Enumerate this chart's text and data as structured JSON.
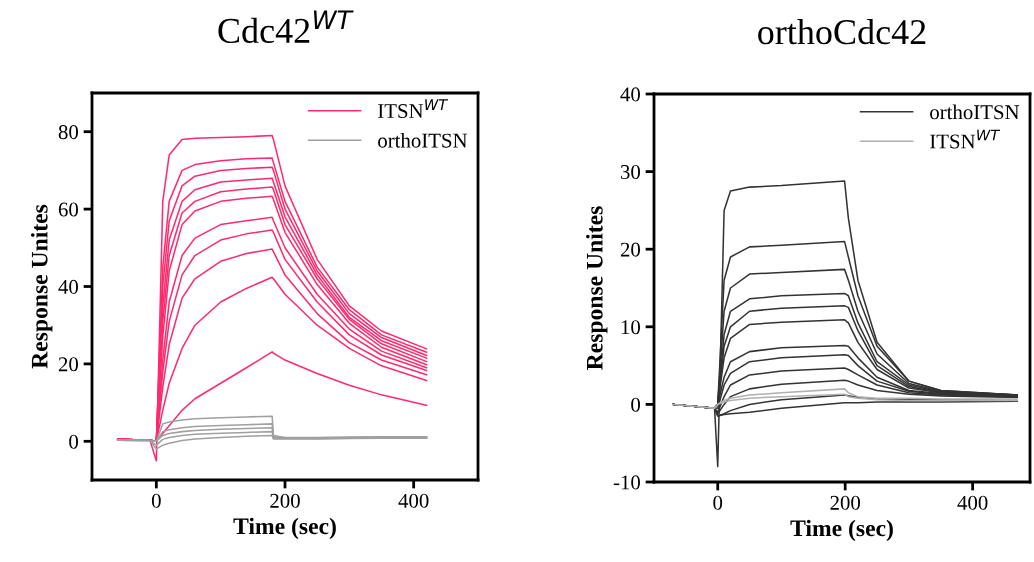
{
  "chart_data": [
    {
      "type": "line",
      "title": "Cdc42$^{WT}$",
      "xlabel": "Time (sec)",
      "ylabel": "Response Unites",
      "xlim": [
        -100,
        500
      ],
      "ylim": [
        -10,
        90
      ],
      "xticks": [
        0,
        200,
        400
      ],
      "yticks": [
        0,
        20,
        40,
        60,
        80
      ],
      "legend": "top right",
      "x": [
        -60,
        -10,
        0,
        10,
        20,
        40,
        60,
        100,
        140,
        180,
        182,
        200,
        250,
        300,
        350,
        420
      ],
      "series": [
        {
          "name": "ITSN$^{WT}$",
          "color": "#ff2a6d",
          "values": [
            0.5,
            0.3,
            -5,
            62,
            74,
            78,
            78.3,
            78.5,
            78.7,
            79,
            78,
            66,
            47,
            35,
            28.5,
            23.9
          ]
        },
        {
          "color": "#ff2a6d",
          "values": [
            0.5,
            0.3,
            0,
            45,
            62,
            70,
            71.5,
            72.5,
            73,
            73.2,
            72,
            62,
            45,
            34,
            27.5,
            23
          ]
        },
        {
          "color": "#ff2a6d",
          "values": [
            0.5,
            0.3,
            0,
            40,
            57,
            66,
            68.5,
            70,
            70.5,
            70.8,
            70,
            60,
            44,
            33,
            26.8,
            22.2
          ]
        },
        {
          "color": "#ff2a6d",
          "values": [
            0.5,
            0.3,
            0,
            35,
            52,
            62,
            65,
            67,
            67.5,
            68,
            67,
            58,
            43,
            32,
            26,
            21.5
          ]
        },
        {
          "color": "#ff2a6d",
          "values": [
            0.5,
            0.3,
            0,
            31,
            48,
            59,
            62,
            64.5,
            65.2,
            65.7,
            65,
            56,
            42,
            31.5,
            25.2,
            20.6
          ]
        },
        {
          "color": "#ff2a6d",
          "values": [
            0.5,
            0.3,
            0,
            27,
            44,
            56,
            59.5,
            62,
            62.8,
            63.3,
            62.5,
            54,
            40.5,
            30.5,
            24.3,
            19.8
          ]
        },
        {
          "color": "#ff2a6d",
          "values": [
            0.5,
            0.3,
            0,
            21,
            36,
            48,
            52.5,
            56,
            57,
            57.9,
            57,
            50,
            38,
            29,
            23.3,
            19
          ]
        },
        {
          "color": "#ff2a6d",
          "values": [
            0.5,
            0.3,
            0,
            18,
            31,
            43,
            48,
            52,
            53.6,
            54.6,
            54,
            47,
            36,
            27.5,
            22.3,
            18.3
          ]
        },
        {
          "color": "#ff2a6d",
          "values": [
            0.5,
            0.3,
            0,
            14,
            25,
            37,
            42,
            46.5,
            48.5,
            49.7,
            49,
            43,
            33,
            25.5,
            21,
            17.2
          ]
        },
        {
          "color": "#ff2a6d",
          "values": [
            0.5,
            0.3,
            0,
            8,
            15,
            24,
            30,
            36,
            39.5,
            42.4,
            42,
            38,
            30,
            24,
            19.5,
            15.7
          ]
        },
        {
          "color": "#ff2a6d",
          "values": [
            0.5,
            0.3,
            0,
            2,
            4,
            8,
            11,
            15,
            19,
            23.1,
            22.8,
            21,
            17.5,
            14.5,
            12,
            9.3
          ]
        },
        {
          "name": "orthoITSN",
          "color": "#a0a0a0",
          "values": [
            0.3,
            0.2,
            0,
            4.5,
            5,
            5.5,
            5.8,
            6.1,
            6.3,
            6.5,
            1.5,
            1,
            1,
            1.1,
            1.2,
            1.2
          ]
        },
        {
          "color": "#a0a0a0",
          "values": [
            0.3,
            0.2,
            0,
            2.5,
            3,
            3.5,
            3.8,
            4.1,
            4.3,
            4.5,
            1.2,
            0.9,
            0.9,
            1,
            1.1,
            1.1
          ]
        },
        {
          "color": "#a0a0a0",
          "values": [
            0.3,
            0.2,
            0,
            1.5,
            2,
            2.5,
            2.8,
            3.1,
            3.3,
            3.5,
            1,
            0.8,
            0.8,
            0.9,
            1,
            1
          ]
        },
        {
          "color": "#a0a0a0",
          "values": [
            0.3,
            0.2,
            -1,
            0.5,
            1,
            1.5,
            1.8,
            2.1,
            2.3,
            2.5,
            0.8,
            0.7,
            0.7,
            0.8,
            0.9,
            0.9
          ]
        },
        {
          "color": "#a0a0a0",
          "values": [
            0.3,
            0.2,
            -2,
            -1,
            -0.5,
            0.2,
            0.6,
            1,
            1.3,
            1.5,
            0.6,
            0.6,
            0.6,
            0.7,
            0.8,
            0.8
          ]
        }
      ]
    },
    {
      "type": "line",
      "title": "orthoCdc42",
      "xlabel": "Time (sec)",
      "ylabel": "Response Unites",
      "xlim": [
        -100,
        490
      ],
      "ylim": [
        -10,
        40
      ],
      "xticks": [
        0,
        200,
        400
      ],
      "yticks": [
        -10,
        0,
        10,
        20,
        30,
        40
      ],
      "legend": "top right",
      "x": [
        -70,
        -5,
        0,
        10,
        20,
        50,
        100,
        199,
        205,
        220,
        250,
        300,
        350,
        470
      ],
      "series": [
        {
          "name": "orthoITSN",
          "color": "#333333",
          "values": [
            0,
            -0.5,
            -8,
            25,
            27.5,
            28,
            28.2,
            28.8,
            24,
            16,
            8,
            3,
            1.8,
            1.2
          ]
        },
        {
          "color": "#333333",
          "values": [
            0,
            -0.5,
            0,
            16,
            19,
            20.3,
            20.5,
            21,
            19,
            14,
            7.5,
            3,
            1.8,
            1.2
          ]
        },
        {
          "color": "#333333",
          "values": [
            0,
            -0.5,
            0,
            12,
            15,
            16.8,
            17,
            17.4,
            16,
            12,
            6.5,
            2.7,
            1.7,
            1.2
          ]
        },
        {
          "color": "#333333",
          "values": [
            0,
            -0.5,
            0,
            9,
            12,
            13.6,
            14,
            14.3,
            14,
            10.5,
            5.5,
            2.5,
            1.6,
            1.2
          ]
        },
        {
          "color": "#333333",
          "values": [
            0,
            -0.5,
            0,
            7.5,
            10,
            12,
            12.4,
            12.7,
            12.5,
            9.5,
            5,
            2.3,
            1.5,
            1.1
          ]
        },
        {
          "color": "#333333",
          "values": [
            0,
            -0.5,
            0,
            6,
            8.5,
            10.3,
            10.6,
            10.9,
            10.5,
            8,
            4.5,
            2.1,
            1.5,
            1.1
          ]
        },
        {
          "color": "#333333",
          "values": [
            0,
            -0.5,
            0,
            3.5,
            5.5,
            6.8,
            7.3,
            7.6,
            7.5,
            6,
            3.5,
            1.8,
            1.4,
            1.1
          ]
        },
        {
          "color": "#333333",
          "values": [
            0,
            -0.5,
            -0.5,
            2.5,
            4,
            5.5,
            6,
            6.4,
            6.3,
            5,
            3,
            1.7,
            1.3,
            1
          ]
        },
        {
          "color": "#333333",
          "values": [
            0,
            -0.5,
            -1,
            1,
            2.5,
            3.8,
            4.3,
            4.7,
            4.5,
            3.8,
            2.5,
            1.5,
            1.2,
            1
          ]
        },
        {
          "color": "#333333",
          "values": [
            0,
            -0.5,
            -1.2,
            0,
            1,
            2,
            2.6,
            3.1,
            3,
            2.5,
            1.8,
            1.3,
            1.1,
            0.9
          ]
        },
        {
          "color": "#333333",
          "values": [
            0,
            -0.5,
            -1.5,
            -1.2,
            -0.8,
            0,
            0.6,
            1.2,
            1.1,
            0.9,
            0.7,
            0.6,
            0.6,
            0.5
          ]
        },
        {
          "color": "#333333",
          "values": [
            0,
            -0.5,
            -1.5,
            -1.3,
            -1.2,
            -1,
            -0.5,
            0.2,
            0.2,
            0.2,
            0.3,
            0.3,
            0.3,
            0.4
          ]
        },
        {
          "name": "ITSN$^{WT}$",
          "color": "#b0b0b0",
          "values": [
            0,
            -0.5,
            0,
            0.5,
            0.8,
            1.2,
            1.5,
            2,
            1.5,
            1,
            0.8,
            0.8,
            0.7,
            0.7
          ]
        },
        {
          "color": "#b0b0b0",
          "values": [
            0,
            -0.5,
            0,
            0.3,
            0.5,
            0.8,
            1,
            1.3,
            1,
            0.8,
            0.6,
            0.5,
            0.5,
            0.5
          ]
        }
      ]
    }
  ]
}
